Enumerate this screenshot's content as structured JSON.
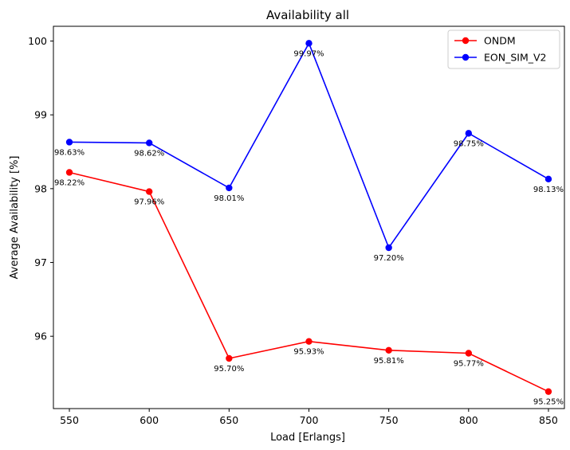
{
  "chart_data": {
    "type": "line",
    "title": "Availability all",
    "xlabel": "Load [Erlangs]",
    "ylabel": "Average Availability [%]",
    "x": [
      550,
      600,
      650,
      700,
      750,
      800,
      850
    ],
    "x_tick_labels": [
      "550",
      "600",
      "650",
      "700",
      "750",
      "800",
      "850"
    ],
    "y_ticks": [
      96,
      97,
      98,
      99,
      100
    ],
    "y_tick_labels": [
      "96",
      "97",
      "98",
      "99",
      "100"
    ],
    "xlim": [
      540,
      860
    ],
    "ylim": [
      95.02,
      100.2
    ],
    "grid": false,
    "legend_position": "top-right",
    "series": [
      {
        "name": "ONDM",
        "color": "#ff0000",
        "values": [
          98.22,
          97.96,
          95.7,
          95.93,
          95.81,
          95.77,
          95.25
        ],
        "labels": [
          "98.22%",
          "97.96%",
          "95.70%",
          "95.93%",
          "95.81%",
          "95.77%",
          "95.25%"
        ]
      },
      {
        "name": "EON_SIM_V2",
        "color": "#0000ff",
        "values": [
          98.63,
          98.62,
          98.01,
          99.97,
          97.2,
          98.75,
          98.13
        ],
        "labels": [
          "98.63%",
          "98.62%",
          "98.01%",
          "99.97%",
          "97.20%",
          "98.75%",
          "98.13%"
        ]
      }
    ]
  }
}
